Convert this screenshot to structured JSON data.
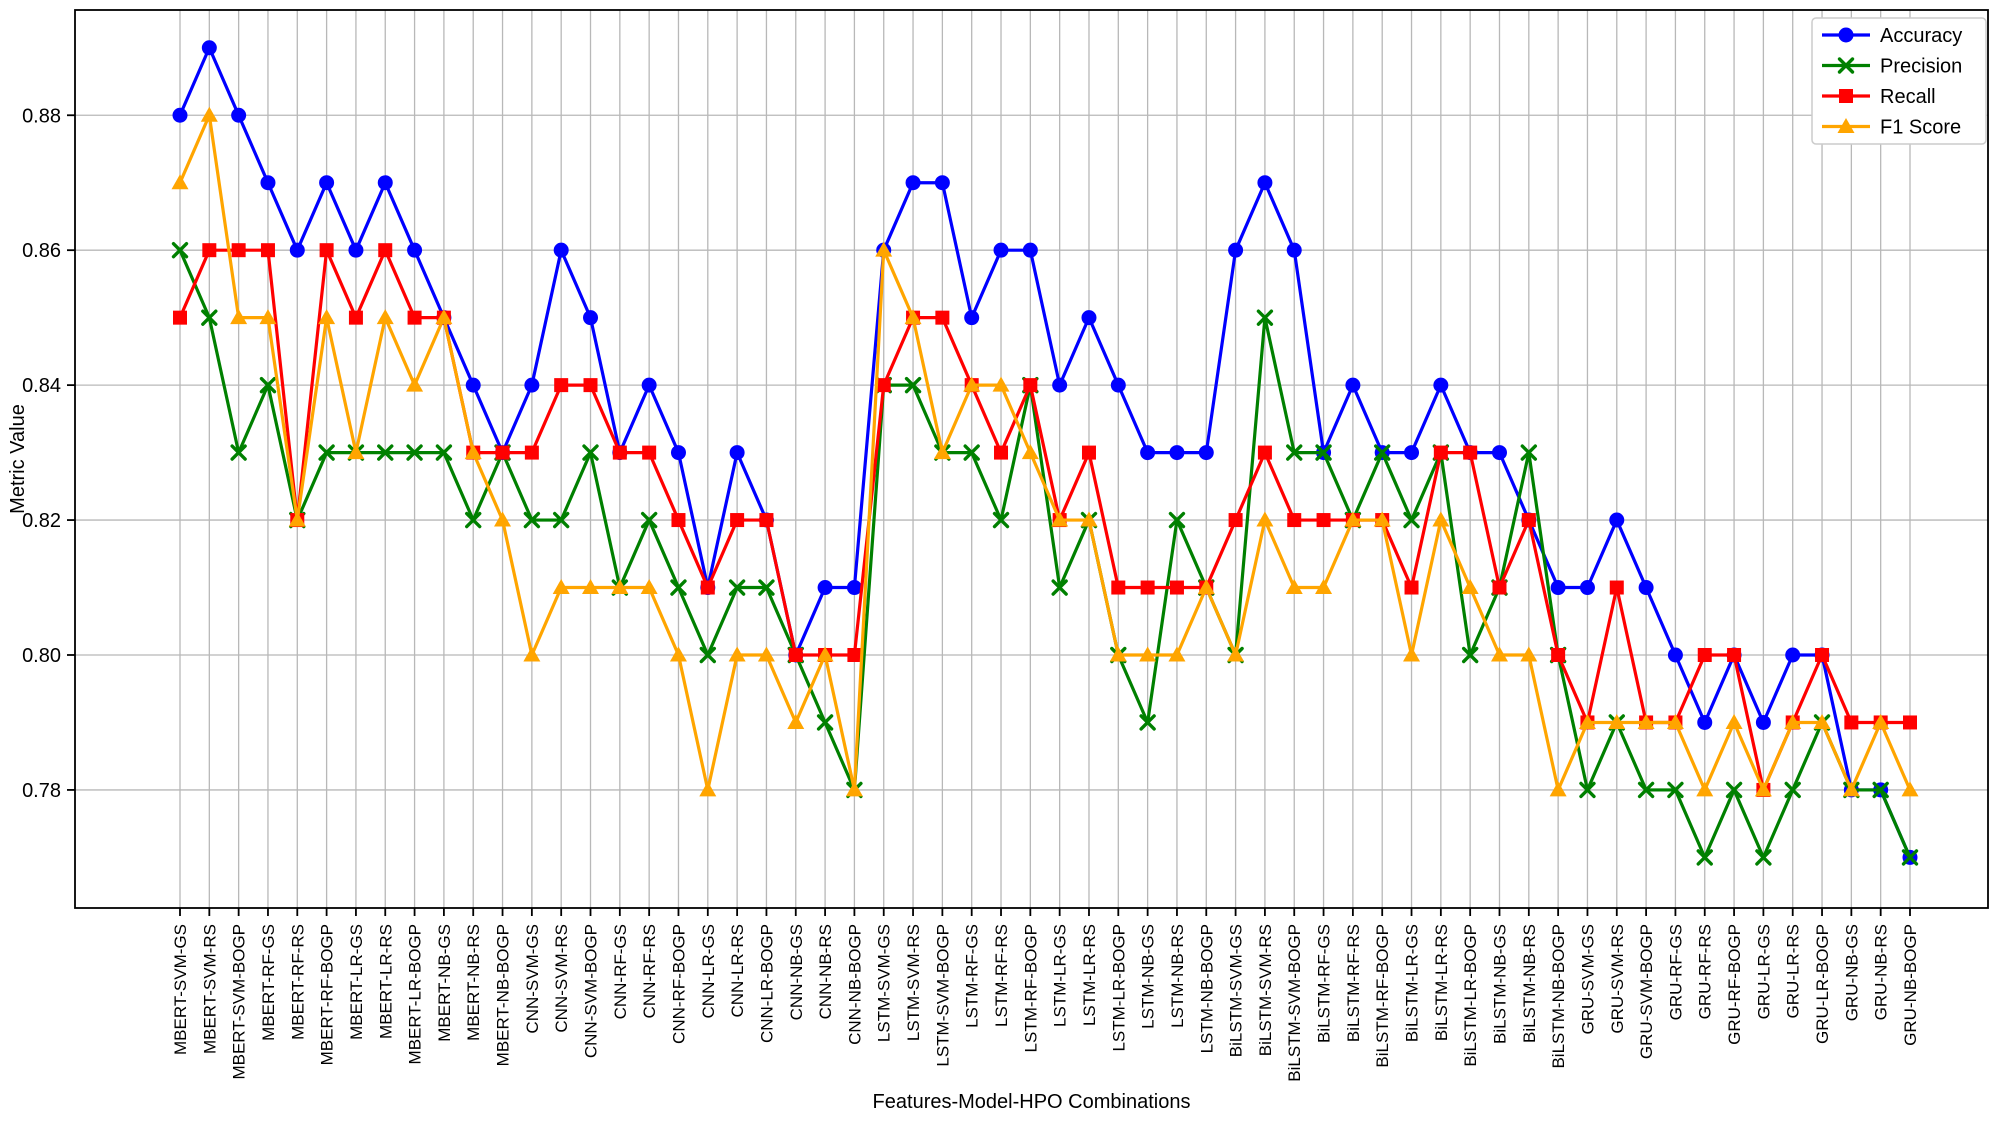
{
  "chart_data": {
    "type": "line",
    "title": "",
    "xlabel": "Features-Model-HPO Combinations",
    "ylabel": "Metric Value",
    "ylim": [
      0.7625,
      0.8956
    ],
    "yticks": [
      0.78,
      0.8,
      0.82,
      0.84,
      0.86,
      0.88
    ],
    "grid": true,
    "legend_position": "upper right",
    "categories": [
      "MBERT-SVM-GS",
      "MBERT-SVM-RS",
      "MBERT-SVM-BOGP",
      "MBERT-RF-GS",
      "MBERT-RF-RS",
      "MBERT-RF-BOGP",
      "MBERT-LR-GS",
      "MBERT-LR-RS",
      "MBERT-LR-BOGP",
      "MBERT-NB-GS",
      "MBERT-NB-RS",
      "MBERT-NB-BOGP",
      "CNN-SVM-GS",
      "CNN-SVM-RS",
      "CNN-SVM-BOGP",
      "CNN-RF-GS",
      "CNN-RF-RS",
      "CNN-RF-BOGP",
      "CNN-LR-GS",
      "CNN-LR-RS",
      "CNN-LR-BOGP",
      "CNN-NB-GS",
      "CNN-NB-RS",
      "CNN-NB-BOGP",
      "LSTM-SVM-GS",
      "LSTM-SVM-RS",
      "LSTM-SVM-BOGP",
      "LSTM-RF-GS",
      "LSTM-RF-RS",
      "LSTM-RF-BOGP",
      "LSTM-LR-GS",
      "LSTM-LR-RS",
      "LSTM-LR-BOGP",
      "LSTM-NB-GS",
      "LSTM-NB-RS",
      "LSTM-NB-BOGP",
      "BiLSTM-SVM-GS",
      "BiLSTM-SVM-RS",
      "BiLSTM-SVM-BOGP",
      "BiLSTM-RF-GS",
      "BiLSTM-RF-RS",
      "BiLSTM-RF-BOGP",
      "BiLSTM-LR-GS",
      "BiLSTM-LR-RS",
      "BiLSTM-LR-BOGP",
      "BiLSTM-NB-GS",
      "BiLSTM-NB-RS",
      "BiLSTM-NB-BOGP",
      "GRU-SVM-GS",
      "GRU-SVM-RS",
      "GRU-SVM-BOGP",
      "GRU-RF-GS",
      "GRU-RF-RS",
      "GRU-RF-BOGP",
      "GRU-LR-GS",
      "GRU-LR-RS",
      "GRU-LR-BOGP",
      "GRU-NB-GS",
      "GRU-NB-RS",
      "GRU-NB-BOGP"
    ],
    "series": [
      {
        "name": "Accuracy",
        "color": "#0000ff",
        "marker": "circle",
        "values": [
          0.88,
          0.89,
          0.88,
          0.87,
          0.86,
          0.87,
          0.86,
          0.87,
          0.86,
          0.85,
          0.84,
          0.83,
          0.84,
          0.86,
          0.85,
          0.83,
          0.84,
          0.83,
          0.81,
          0.83,
          0.82,
          0.8,
          0.81,
          0.81,
          0.86,
          0.87,
          0.87,
          0.85,
          0.86,
          0.86,
          0.84,
          0.85,
          0.84,
          0.83,
          0.83,
          0.83,
          0.86,
          0.87,
          0.86,
          0.83,
          0.84,
          0.83,
          0.83,
          0.84,
          0.83,
          0.83,
          0.82,
          0.81,
          0.81,
          0.82,
          0.81,
          0.8,
          0.79,
          0.8,
          0.79,
          0.8,
          0.8,
          0.78,
          0.78,
          0.77
        ]
      },
      {
        "name": "Precision",
        "color": "#008000",
        "marker": "x",
        "values": [
          0.86,
          0.85,
          0.83,
          0.84,
          0.82,
          0.83,
          0.83,
          0.83,
          0.83,
          0.83,
          0.82,
          0.83,
          0.82,
          0.82,
          0.83,
          0.81,
          0.82,
          0.81,
          0.8,
          0.81,
          0.81,
          0.8,
          0.79,
          0.78,
          0.84,
          0.84,
          0.83,
          0.83,
          0.82,
          0.84,
          0.81,
          0.82,
          0.8,
          0.79,
          0.82,
          0.81,
          0.8,
          0.85,
          0.83,
          0.83,
          0.82,
          0.83,
          0.82,
          0.83,
          0.8,
          0.81,
          0.83,
          0.8,
          0.78,
          0.79,
          0.78,
          0.78,
          0.77,
          0.78,
          0.77,
          0.78,
          0.79,
          0.78,
          0.78,
          0.77
        ]
      },
      {
        "name": "Recall",
        "color": "#ff0000",
        "marker": "square",
        "values": [
          0.85,
          0.86,
          0.86,
          0.86,
          0.82,
          0.86,
          0.85,
          0.86,
          0.85,
          0.85,
          0.83,
          0.83,
          0.83,
          0.84,
          0.84,
          0.83,
          0.83,
          0.82,
          0.81,
          0.82,
          0.82,
          0.8,
          0.8,
          0.8,
          0.84,
          0.85,
          0.85,
          0.84,
          0.83,
          0.84,
          0.82,
          0.83,
          0.81,
          0.81,
          0.81,
          0.81,
          0.82,
          0.83,
          0.82,
          0.82,
          0.82,
          0.82,
          0.81,
          0.83,
          0.83,
          0.81,
          0.82,
          0.8,
          0.79,
          0.81,
          0.79,
          0.79,
          0.8,
          0.8,
          0.78,
          0.79,
          0.8,
          0.79,
          0.79,
          0.79
        ]
      },
      {
        "name": "F1 Score",
        "color": "#ffa500",
        "marker": "triangle",
        "values": [
          0.87,
          0.88,
          0.85,
          0.85,
          0.82,
          0.85,
          0.83,
          0.85,
          0.84,
          0.85,
          0.83,
          0.82,
          0.8,
          0.81,
          0.81,
          0.81,
          0.81,
          0.8,
          0.78,
          0.8,
          0.8,
          0.79,
          0.8,
          0.78,
          0.86,
          0.85,
          0.83,
          0.84,
          0.84,
          0.83,
          0.82,
          0.82,
          0.8,
          0.8,
          0.8,
          0.81,
          0.8,
          0.82,
          0.81,
          0.81,
          0.82,
          0.82,
          0.8,
          0.82,
          0.81,
          0.8,
          0.8,
          0.78,
          0.79,
          0.79,
          0.79,
          0.79,
          0.78,
          0.79,
          0.78,
          0.79,
          0.79,
          0.78,
          0.79,
          0.78
        ]
      }
    ]
  },
  "legend": {
    "entries": [
      "Accuracy",
      "Precision",
      "Recall",
      "F1 Score"
    ]
  },
  "axes": {
    "x_title": "Features-Model-HPO Combinations",
    "y_title": "Metric Value"
  }
}
